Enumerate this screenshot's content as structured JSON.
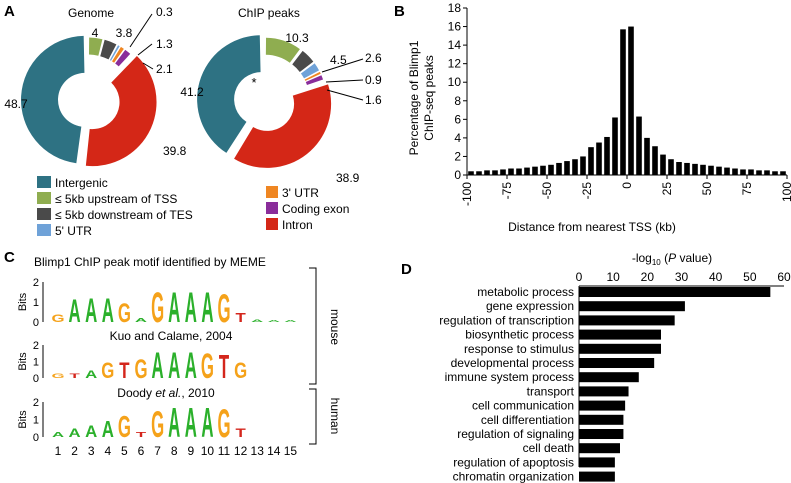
{
  "colors": {
    "intergenic": "#2e7283",
    "upstream": "#8fad50",
    "downstream": "#4a4a4a",
    "utr5": "#6fa2d8",
    "utr3": "#ef8622",
    "coding": "#8a2d9a",
    "intron": "#d42717",
    "bar": "#000000",
    "logo_A": "#2bb02b",
    "logo_G": "#f5a21a",
    "logo_T": "#d4261c",
    "logo_C": "#2060c8"
  },
  "panels": {
    "a": "A",
    "b": "B",
    "c": "C",
    "d": "D"
  },
  "chart_data": [
    {
      "type": "pie",
      "title": "Genome",
      "slices": [
        {
          "name": "Intergenic",
          "value": 48.7,
          "label": "48.7",
          "color_key": "intergenic"
        },
        {
          "name": "≤ 5kb upstream of TSS",
          "value": 4,
          "label": "4",
          "color_key": "upstream"
        },
        {
          "name": "≤ 5kb downstream of TES",
          "value": 3.8,
          "label": "3.8",
          "color_key": "downstream"
        },
        {
          "name": "5' UTR",
          "value": 0.3,
          "label": "0.3",
          "color_key": "utr5"
        },
        {
          "name": "3' UTR",
          "value": 1.3,
          "label": "1.3",
          "color_key": "utr3"
        },
        {
          "name": "Coding exon",
          "value": 2.1,
          "label": "2.1",
          "color_key": "coding"
        },
        {
          "name": "Intron",
          "value": 39.8,
          "label": "39.8",
          "color_key": "intron"
        }
      ]
    },
    {
      "type": "pie",
      "title": "ChIP peaks",
      "annotation": "*",
      "slices": [
        {
          "name": "Intergenic",
          "value": 41.2,
          "label": "41.2",
          "color_key": "intergenic"
        },
        {
          "name": "≤ 5kb upstream of TSS",
          "value": 10.3,
          "label": "10.3",
          "color_key": "upstream"
        },
        {
          "name": "≤ 5kb downstream of TES",
          "value": 4.5,
          "label": "4.5",
          "color_key": "downstream"
        },
        {
          "name": "5' UTR",
          "value": 2.6,
          "label": "2.6",
          "color_key": "utr5"
        },
        {
          "name": "3' UTR",
          "value": 0.9,
          "label": "0.9",
          "color_key": "utr3"
        },
        {
          "name": "Coding exon",
          "value": 1.6,
          "label": "1.6",
          "color_key": "coding"
        },
        {
          "name": "Intron",
          "value": 38.9,
          "label": "38.9",
          "color_key": "intron"
        }
      ]
    },
    {
      "type": "bar",
      "xlabel": "Distance from nearest TSS (kb)",
      "ylabel_line1": "Percentage of Blimp1",
      "ylabel_line2": "ChIP-seq peaks",
      "ylim": [
        0,
        18
      ],
      "yticks": [
        0,
        2,
        4,
        6,
        8,
        10,
        12,
        14,
        16,
        18
      ],
      "xlim": [
        -100,
        100
      ],
      "xticks": [
        -100,
        -75,
        -50,
        -25,
        0,
        25,
        50,
        75,
        100
      ],
      "bin_width": 5,
      "x": [
        -97.5,
        -92.5,
        -87.5,
        -82.5,
        -77.5,
        -72.5,
        -67.5,
        -62.5,
        -57.5,
        -52.5,
        -47.5,
        -42.5,
        -37.5,
        -32.5,
        -27.5,
        -22.5,
        -17.5,
        -12.5,
        -7.5,
        -2.5,
        2.5,
        7.5,
        12.5,
        17.5,
        22.5,
        27.5,
        32.5,
        37.5,
        42.5,
        47.5,
        52.5,
        57.5,
        62.5,
        67.5,
        72.5,
        77.5,
        82.5,
        87.5,
        92.5,
        97.5
      ],
      "values": [
        0.4,
        0.4,
        0.5,
        0.5,
        0.6,
        0.7,
        0.7,
        0.8,
        0.9,
        1.0,
        1.1,
        1.3,
        1.5,
        1.7,
        2.0,
        3.0,
        3.5,
        4.1,
        6.2,
        15.7,
        16.0,
        6.3,
        4.0,
        3.1,
        2.2,
        1.7,
        1.4,
        1.3,
        1.2,
        1.1,
        1.0,
        0.9,
        0.8,
        0.7,
        0.6,
        0.6,
        0.5,
        0.5,
        0.4,
        0.4
      ]
    },
    {
      "type": "bar",
      "orientation": "horizontal",
      "xlabel_prefix": "-log",
      "xlabel_sub": "10",
      "xlabel_italic": "P",
      "xlabel_suffix": "value)",
      "xlim": [
        0,
        60
      ],
      "xticks": [
        0,
        10,
        20,
        30,
        40,
        50,
        60
      ],
      "categories": [
        "metabolic process",
        "gene expression",
        "regulation of transcription",
        "biosynthetic process",
        "response to stimulus",
        "developmental process",
        "immune system process",
        "transport",
        "cell communication",
        "cell differentiation",
        "regulation of signaling",
        "cell death",
        "regulation of apoptosis",
        "chromatin organization"
      ],
      "values": [
        56,
        31,
        28,
        24,
        24,
        22,
        17.5,
        14.5,
        13.5,
        13,
        13,
        12,
        10.5,
        10.5
      ]
    }
  ],
  "legend": {
    "col1": [
      {
        "label": "Intergenic",
        "color_key": "intergenic"
      },
      {
        "label": "≤ 5kb upstream of TSS",
        "color_key": "upstream"
      },
      {
        "label": "≤ 5kb downstream of TES",
        "color_key": "downstream"
      },
      {
        "label": "5' UTR",
        "color_key": "utr5"
      }
    ],
    "col2": [
      {
        "label": "3' UTR",
        "color_key": "utr3"
      },
      {
        "label": "Coding exon",
        "color_key": "coding"
      },
      {
        "label": "Intron",
        "color_key": "intron"
      }
    ]
  },
  "motifs": {
    "title": "Blimp1 ChIP peak motif identified by MEME",
    "bits_label": "Bits",
    "y_ticks": [
      "2",
      "1",
      "0"
    ],
    "logo1": [
      [
        "G",
        0.4
      ],
      [
        "A",
        1.2
      ],
      [
        "A",
        1.3
      ],
      [
        "A",
        1.3
      ],
      [
        "G",
        1.0
      ],
      [
        "A",
        0.2
      ],
      [
        "G",
        1.6
      ],
      [
        "A",
        1.6
      ],
      [
        "A",
        1.6
      ],
      [
        "A",
        1.6
      ],
      [
        "G",
        1.5
      ],
      [
        "T",
        0.5
      ],
      [
        "A",
        0.15
      ],
      [
        "A",
        0.1
      ],
      [
        "A",
        0.1
      ]
    ],
    "sub1": "Kuo and Calame, 2004",
    "logo2": [
      [
        "G",
        0.3
      ],
      [
        "T",
        0.3
      ],
      [
        "A",
        0.5
      ],
      [
        "G",
        1.0
      ],
      [
        "T",
        1.0
      ],
      [
        "G",
        1.2
      ],
      [
        "A",
        1.7
      ],
      [
        "A",
        1.7
      ],
      [
        "A",
        1.7
      ],
      [
        "G",
        1.6
      ],
      [
        "T",
        1.5
      ],
      [
        "G",
        1.0
      ]
    ],
    "sub3_prefix": "Doody ",
    "sub3_italic": "et al.",
    "sub3_suffix": ", 2010",
    "logo3": [
      [
        "A",
        0.3
      ],
      [
        "A",
        0.5
      ],
      [
        "A",
        0.7
      ],
      [
        "A",
        1.0
      ],
      [
        "G",
        1.3
      ],
      [
        "T",
        0.3
      ],
      [
        "G",
        1.6
      ],
      [
        "A",
        1.8
      ],
      [
        "A",
        1.8
      ],
      [
        "A",
        1.8
      ],
      [
        "G",
        1.7
      ],
      [
        "T",
        0.5
      ],
      [
        "A",
        0.1
      ],
      [
        "A",
        0.1
      ],
      [
        "A",
        0.1
      ]
    ],
    "x_positions": [
      "1",
      "2",
      "3",
      "4",
      "5",
      "6",
      "7",
      "8",
      "9",
      "10",
      "11",
      "12",
      "13",
      "14",
      "15"
    ],
    "species_mouse": "mouse",
    "species_human": "human"
  }
}
